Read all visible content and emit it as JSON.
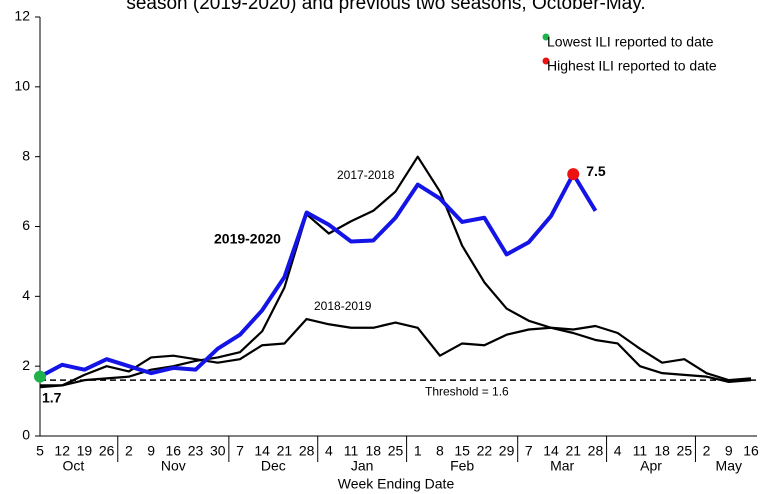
{
  "chart_data": {
    "type": "line",
    "title": "season (2019-2020) and previous two seasons, October-May.",
    "xlabel": "Week Ending Date",
    "categories": [
      "5",
      "12",
      "19",
      "26",
      "2",
      "9",
      "16",
      "23",
      "30",
      "7",
      "14",
      "21",
      "28",
      "4",
      "11",
      "18",
      "25",
      "1",
      "8",
      "15",
      "22",
      "29",
      "7",
      "14",
      "21",
      "28",
      "4",
      "11",
      "18",
      "25",
      "2",
      "9",
      "16"
    ],
    "months": [
      "Oct",
      "Nov",
      "Dec",
      "Jan",
      "Feb",
      "Mar",
      "Apr",
      "May"
    ],
    "series": [
      {
        "name": "2017-2018",
        "color": "#000000",
        "values": [
          1.45,
          1.45,
          1.6,
          1.65,
          1.7,
          1.9,
          2.0,
          2.15,
          2.25,
          2.4,
          3.0,
          4.25,
          6.35,
          5.8,
          6.15,
          6.45,
          7.0,
          8.0,
          7.0,
          5.45,
          4.4,
          3.65,
          3.3,
          3.1,
          2.95,
          2.75,
          2.65,
          2.0,
          1.8,
          1.75,
          1.7,
          1.55,
          1.6
        ]
      },
      {
        "name": "2018-2019",
        "color": "#000000",
        "values": [
          1.4,
          1.45,
          1.75,
          2.0,
          1.85,
          2.25,
          2.3,
          2.2,
          2.1,
          2.2,
          2.6,
          2.65,
          3.35,
          3.2,
          3.1,
          3.1,
          3.25,
          3.1,
          2.3,
          2.65,
          2.6,
          2.9,
          3.05,
          3.1,
          3.05,
          3.15,
          2.95,
          2.5,
          2.1,
          2.2,
          1.8,
          1.6,
          1.65
        ]
      },
      {
        "name": "2019-2020",
        "color": "#1414e6",
        "values": [
          1.7,
          2.04,
          1.9,
          2.2,
          2.0,
          1.8,
          1.95,
          1.9,
          2.5,
          2.9,
          3.6,
          4.55,
          6.4,
          6.05,
          5.57,
          5.6,
          6.25,
          7.2,
          6.8,
          6.13,
          6.25,
          5.2,
          5.55,
          6.3,
          7.5,
          6.45,
          null,
          null,
          null,
          null,
          null,
          null,
          null
        ]
      }
    ],
    "threshold": 1.6,
    "threshold_label": "Threshold = 1.6",
    "legend": [
      {
        "label": "Lowest ILI reported to date",
        "color": "#1fb24a"
      },
      {
        "label": "Highest ILI reported to date",
        "color": "#ee1111"
      }
    ],
    "ylim": [
      0,
      12
    ],
    "yticks": [
      0,
      2,
      4,
      6,
      8,
      10,
      12
    ]
  }
}
